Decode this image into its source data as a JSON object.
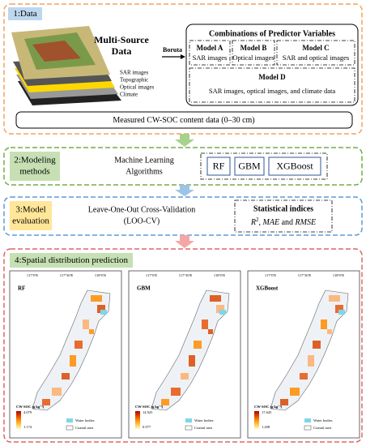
{
  "data_section": {
    "label": "1:Data",
    "source_title": [
      "Multi-Source",
      "Data"
    ],
    "layers": [
      "SAR images",
      "Topographic",
      "Optical images",
      "Climate"
    ],
    "arrow_label": "Boruta",
    "combinations": {
      "title": "Combinations of Predictor Variables",
      "models": [
        {
          "name": "Model A",
          "desc": "SAR images"
        },
        {
          "name": "Model B",
          "desc": "Optical images"
        },
        {
          "name": "Model C",
          "desc": "SAR and optical images"
        },
        {
          "name": "Model D",
          "desc": "SAR images, optical images, and climate data"
        }
      ]
    },
    "measured": "Measured CW-SOC  content data  (0–30 cm)"
  },
  "modeling": {
    "label": [
      "2:Modeling",
      "methods"
    ],
    "description": [
      "Machine Learning",
      "Algorithms"
    ],
    "algorithms": [
      "RF",
      "GBM",
      "XGBoost"
    ]
  },
  "evaluation": {
    "label": [
      "3:Model",
      "evaluation"
    ],
    "description": [
      "Leave-One-Out Cross-Validation",
      "(LOO-CV)"
    ],
    "indices_title": "Statistical indices",
    "indices": [
      "R",
      "2",
      ", ",
      "MAE",
      " and ",
      "RMSE"
    ]
  },
  "prediction": {
    "label": "4:Spatial distribution prediction",
    "lon_ticks": [
      "117°0'E",
      "117°30'E",
      "118°0'E"
    ],
    "maps": [
      {
        "title": "RF",
        "legend_title": "CW-SOC (g kg⁻¹)",
        "high": "4.079",
        "low": "1.174",
        "water": "Water bodies",
        "coastal": "Coastal area"
      },
      {
        "title": "GBM",
        "legend_title": "CW-SOC (g kg⁻¹)",
        "high": "14.925",
        "low": "0.977",
        "water": "Water bodies",
        "coastal": "Coastal area"
      },
      {
        "title": "XGBoost",
        "legend_title": "CW-SOC (g kg⁻¹)",
        "high": "17.645",
        "low": "1.208",
        "water": "Water bodies",
        "coastal": "Coastal area"
      }
    ]
  }
}
